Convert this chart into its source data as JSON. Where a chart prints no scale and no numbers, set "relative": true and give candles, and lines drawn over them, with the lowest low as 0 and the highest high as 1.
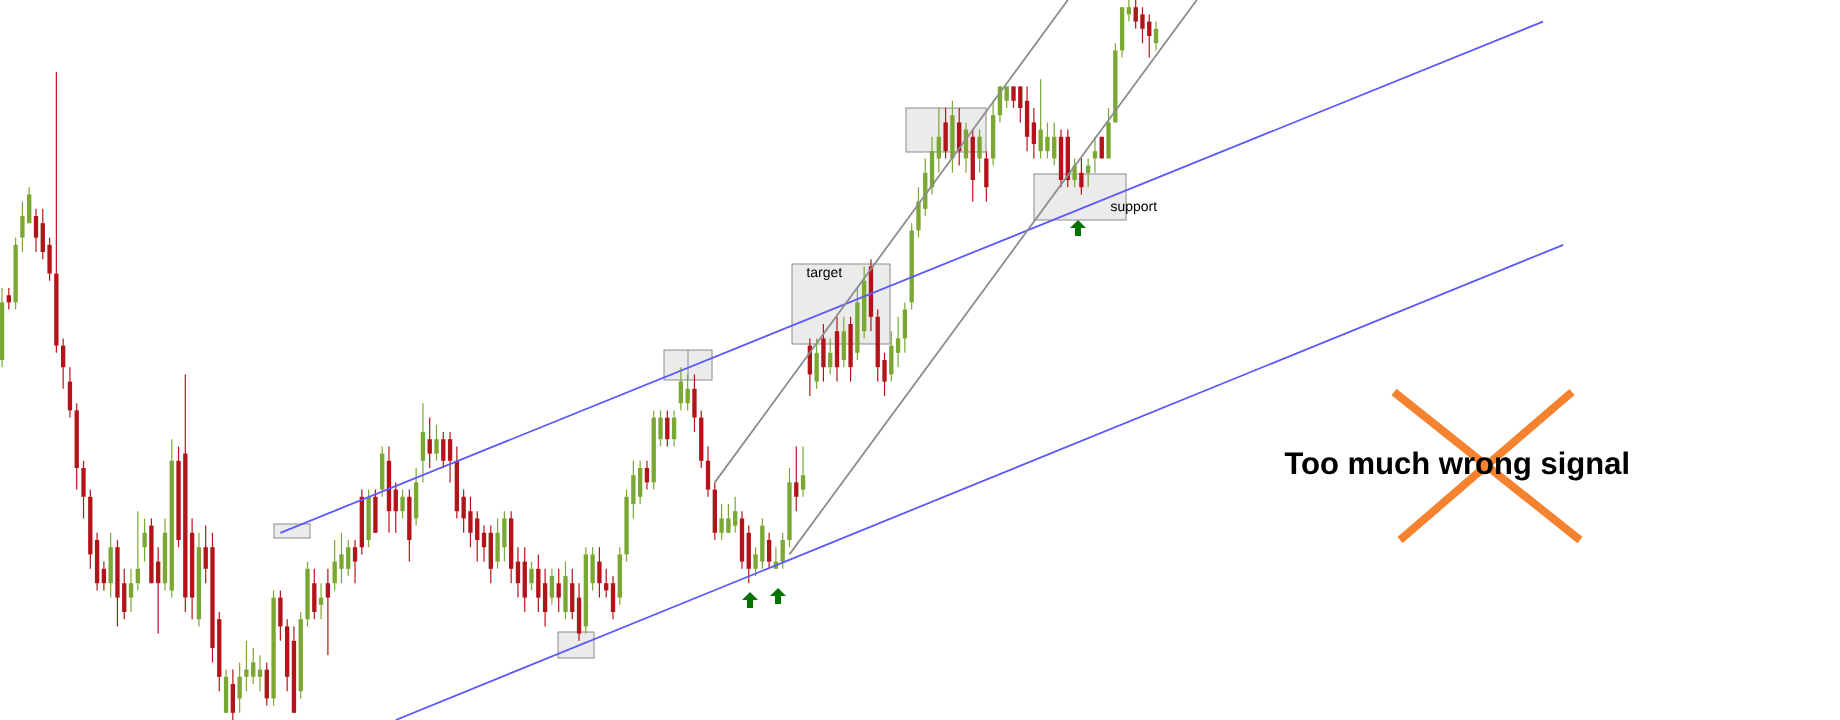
{
  "chart_data": {
    "type": "candlestick",
    "relative": true,
    "categories": [
      null,
      null,
      null,
      null,
      null,
      null,
      null,
      null,
      null,
      null,
      null,
      null,
      null,
      null,
      null,
      null,
      null,
      null,
      null,
      null,
      null,
      null,
      null,
      null,
      null,
      null,
      null,
      null,
      null,
      null,
      null,
      null,
      null,
      null,
      null,
      null,
      null,
      null,
      null,
      null,
      null,
      null,
      null,
      null,
      null,
      null,
      null,
      null,
      null,
      null,
      null,
      null,
      null,
      null,
      null,
      null,
      null,
      null,
      null,
      null,
      null,
      null,
      null,
      null,
      null,
      null,
      null,
      null,
      null,
      null,
      null,
      null,
      null,
      null,
      null,
      null,
      null,
      null,
      null,
      null,
      null,
      null,
      null,
      null,
      null,
      null,
      null,
      null,
      null,
      null,
      null,
      null,
      null,
      null,
      null,
      null,
      null,
      null,
      null,
      null,
      null,
      null,
      null,
      null,
      null,
      null,
      null,
      null,
      null,
      null,
      null,
      null,
      null,
      null,
      null,
      null,
      null,
      null,
      null,
      null,
      null,
      null,
      null,
      null,
      null,
      null,
      null,
      null,
      null,
      null,
      null,
      null,
      null,
      null,
      null,
      null,
      null,
      null,
      null,
      null,
      null,
      null,
      null,
      null,
      null,
      null,
      null,
      null,
      null,
      null,
      null,
      null,
      null,
      null,
      null,
      null,
      null,
      null,
      null,
      null,
      null,
      null,
      null,
      null,
      null,
      null,
      null,
      null,
      null,
      null,
      null,
      null,
      null,
      null,
      null,
      null,
      null,
      null,
      null,
      null,
      null,
      null,
      null,
      null,
      null,
      null,
      null,
      null,
      null,
      null,
      null,
      null,
      null,
      null,
      null,
      null,
      null,
      null,
      null,
      null,
      null,
      null,
      null,
      null,
      null,
      null,
      null,
      null,
      null,
      null,
      null,
      null,
      null,
      null,
      null,
      null,
      null,
      null,
      null,
      null,
      null,
      null,
      null,
      null,
      null,
      null,
      null,
      null,
      null,
      null,
      null,
      null,
      null,
      null,
      null,
      null,
      null,
      null,
      null,
      null,
      null,
      null,
      null,
      null,
      null,
      null,
      null,
      null,
      null,
      null,
      null,
      null,
      null,
      null,
      null,
      null,
      null,
      null,
      null,
      null,
      null,
      null,
      null,
      null,
      null,
      null,
      null,
      null,
      null,
      null,
      null,
      null
    ],
    "ohlc": [
      [
        0.5,
        0.6,
        0.49,
        0.58
      ],
      [
        0.59,
        0.6,
        0.57,
        0.58
      ],
      [
        0.58,
        0.67,
        0.57,
        0.66
      ],
      [
        0.67,
        0.72,
        0.65,
        0.7
      ],
      [
        0.69,
        0.74,
        0.69,
        0.73
      ],
      [
        0.7,
        0.71,
        0.65,
        0.67
      ],
      [
        0.69,
        0.71,
        0.64,
        0.65
      ],
      [
        0.66,
        0.67,
        0.61,
        0.62
      ],
      [
        0.62,
        0.9,
        0.51,
        0.52
      ],
      [
        0.52,
        0.53,
        0.46,
        0.49
      ],
      [
        0.47,
        0.49,
        0.42,
        0.43
      ],
      [
        0.43,
        0.44,
        0.32,
        0.35
      ],
      [
        0.35,
        0.36,
        0.28,
        0.31
      ],
      [
        0.31,
        0.32,
        0.21,
        0.23
      ],
      [
        0.25,
        0.26,
        0.18,
        0.19
      ],
      [
        0.21,
        0.22,
        0.18,
        0.19
      ],
      [
        0.19,
        0.26,
        0.17,
        0.24
      ],
      [
        0.24,
        0.25,
        0.13,
        0.17
      ],
      [
        0.19,
        0.21,
        0.14,
        0.15
      ],
      [
        0.17,
        0.21,
        0.15,
        0.19
      ],
      [
        0.19,
        0.29,
        0.18,
        0.21
      ],
      [
        0.24,
        0.28,
        0.22,
        0.26
      ],
      [
        0.27,
        0.28,
        0.19,
        0.19
      ],
      [
        0.22,
        0.24,
        0.12,
        0.19
      ],
      [
        0.19,
        0.28,
        0.18,
        0.26
      ],
      [
        0.18,
        0.39,
        0.17,
        0.36
      ],
      [
        0.36,
        0.38,
        0.24,
        0.25
      ],
      [
        0.37,
        0.48,
        0.15,
        0.17
      ],
      [
        0.26,
        0.28,
        0.14,
        0.17
      ],
      [
        0.14,
        0.26,
        0.13,
        0.24
      ],
      [
        0.24,
        0.27,
        0.19,
        0.21
      ],
      [
        0.24,
        0.26,
        0.08,
        0.1
      ],
      [
        0.14,
        0.15,
        0.04,
        0.06
      ],
      [
        0.01,
        0.07,
        0.01,
        0.06
      ],
      [
        0.05,
        0.07,
        0.0,
        0.01
      ],
      [
        0.03,
        0.08,
        0.01,
        0.06
      ],
      [
        0.06,
        0.11,
        0.04,
        0.07
      ],
      [
        0.06,
        0.1,
        0.05,
        0.08
      ],
      [
        0.06,
        0.09,
        0.04,
        0.07
      ],
      [
        0.07,
        0.08,
        0.02,
        0.03
      ],
      [
        0.03,
        0.18,
        0.02,
        0.17
      ],
      [
        0.17,
        0.18,
        0.11,
        0.13
      ],
      [
        0.13,
        0.14,
        0.04,
        0.06
      ],
      [
        0.11,
        0.13,
        0.01,
        0.01
      ],
      [
        0.04,
        0.15,
        0.03,
        0.14
      ],
      [
        0.14,
        0.22,
        0.13,
        0.21
      ],
      [
        0.19,
        0.21,
        0.14,
        0.15
      ],
      [
        0.16,
        0.19,
        0.14,
        0.17
      ],
      [
        0.19,
        0.21,
        0.09,
        0.17
      ],
      [
        0.19,
        0.25,
        0.18,
        0.22
      ],
      [
        0.21,
        0.26,
        0.19,
        0.23
      ],
      [
        0.21,
        0.25,
        0.2,
        0.24
      ],
      [
        0.24,
        0.25,
        0.19,
        0.22
      ],
      [
        0.31,
        0.32,
        0.23,
        0.24
      ],
      [
        0.25,
        0.32,
        0.24,
        0.31
      ],
      [
        0.31,
        0.32,
        0.26,
        0.26
      ],
      [
        0.32,
        0.38,
        0.31,
        0.37
      ],
      [
        0.36,
        0.38,
        0.26,
        0.29
      ],
      [
        0.32,
        0.33,
        0.26,
        0.29
      ],
      [
        0.29,
        0.32,
        0.28,
        0.31
      ],
      [
        0.31,
        0.32,
        0.22,
        0.25
      ],
      [
        0.28,
        0.35,
        0.27,
        0.33
      ],
      [
        0.36,
        0.44,
        0.33,
        0.4
      ],
      [
        0.39,
        0.42,
        0.35,
        0.37
      ],
      [
        0.37,
        0.41,
        0.36,
        0.39
      ],
      [
        0.39,
        0.4,
        0.35,
        0.36
      ],
      [
        0.39,
        0.4,
        0.33,
        0.36
      ],
      [
        0.36,
        0.38,
        0.28,
        0.29
      ],
      [
        0.31,
        0.32,
        0.26,
        0.28
      ],
      [
        0.29,
        0.31,
        0.24,
        0.26
      ],
      [
        0.28,
        0.29,
        0.22,
        0.25
      ],
      [
        0.26,
        0.27,
        0.22,
        0.24
      ],
      [
        0.26,
        0.27,
        0.19,
        0.21
      ],
      [
        0.22,
        0.28,
        0.21,
        0.26
      ],
      [
        0.24,
        0.29,
        0.22,
        0.28
      ],
      [
        0.28,
        0.29,
        0.19,
        0.21
      ],
      [
        0.22,
        0.24,
        0.17,
        0.19
      ],
      [
        0.22,
        0.24,
        0.15,
        0.17
      ],
      [
        0.19,
        0.22,
        0.18,
        0.21
      ],
      [
        0.21,
        0.23,
        0.15,
        0.17
      ],
      [
        0.19,
        0.21,
        0.13,
        0.15
      ],
      [
        0.17,
        0.21,
        0.16,
        0.2
      ],
      [
        0.19,
        0.21,
        0.15,
        0.17
      ],
      [
        0.15,
        0.22,
        0.14,
        0.2
      ],
      [
        0.19,
        0.21,
        0.14,
        0.15
      ],
      [
        0.17,
        0.19,
        0.11,
        0.12
      ],
      [
        0.13,
        0.24,
        0.12,
        0.23
      ],
      [
        0.19,
        0.24,
        0.18,
        0.23
      ],
      [
        0.22,
        0.24,
        0.17,
        0.19
      ],
      [
        0.19,
        0.21,
        0.17,
        0.18
      ],
      [
        0.19,
        0.2,
        0.14,
        0.15
      ],
      [
        0.17,
        0.24,
        0.16,
        0.23
      ],
      [
        0.23,
        0.32,
        0.22,
        0.31
      ],
      [
        0.3,
        0.36,
        0.28,
        0.34
      ],
      [
        0.31,
        0.36,
        0.3,
        0.35
      ],
      [
        0.35,
        0.36,
        0.32,
        0.33
      ],
      [
        0.33,
        0.43,
        0.32,
        0.42
      ],
      [
        0.39,
        0.43,
        0.38,
        0.42
      ],
      [
        0.42,
        0.43,
        0.38,
        0.39
      ],
      [
        0.39,
        0.43,
        0.38,
        0.42
      ],
      [
        0.44,
        0.49,
        0.43,
        0.47
      ],
      [
        0.44,
        0.48,
        0.43,
        0.46
      ],
      [
        0.46,
        0.48,
        0.4,
        0.42
      ],
      [
        0.42,
        0.43,
        0.35,
        0.36
      ],
      [
        0.36,
        0.38,
        0.31,
        0.32
      ],
      [
        0.32,
        0.33,
        0.25,
        0.26
      ],
      [
        0.26,
        0.3,
        0.25,
        0.28
      ],
      [
        0.26,
        0.3,
        0.26,
        0.28
      ],
      [
        0.27,
        0.31,
        0.26,
        0.29
      ],
      [
        0.28,
        0.29,
        0.21,
        0.22
      ],
      [
        0.26,
        0.27,
        0.19,
        0.21
      ],
      [
        0.21,
        0.24,
        0.2,
        0.23
      ],
      [
        0.22,
        0.28,
        0.21,
        0.27
      ],
      [
        0.25,
        0.26,
        0.21,
        0.22
      ],
      [
        0.21,
        0.24,
        0.21,
        0.22
      ],
      [
        0.22,
        0.26,
        0.21,
        0.25
      ],
      [
        0.25,
        0.35,
        0.24,
        0.33
      ],
      [
        0.33,
        0.38,
        0.29,
        0.31
      ],
      [
        0.32,
        0.38,
        0.31,
        0.34
      ],
      [
        0.52,
        0.53,
        0.45,
        0.48
      ],
      [
        0.47,
        0.53,
        0.46,
        0.51
      ],
      [
        0.53,
        0.55,
        0.47,
        0.49
      ],
      [
        0.49,
        0.53,
        0.48,
        0.51
      ],
      [
        0.54,
        0.56,
        0.47,
        0.49
      ],
      [
        0.5,
        0.56,
        0.49,
        0.54
      ],
      [
        0.55,
        0.56,
        0.47,
        0.49
      ],
      [
        0.51,
        0.6,
        0.5,
        0.58
      ],
      [
        0.54,
        0.63,
        0.53,
        0.61
      ],
      [
        0.63,
        0.64,
        0.54,
        0.56
      ],
      [
        0.56,
        0.57,
        0.47,
        0.49
      ],
      [
        0.5,
        0.51,
        0.45,
        0.47
      ],
      [
        0.48,
        0.54,
        0.47,
        0.52
      ],
      [
        0.51,
        0.56,
        0.49,
        0.53
      ],
      [
        0.53,
        0.58,
        0.51,
        0.57
      ],
      [
        0.58,
        0.69,
        0.57,
        0.68
      ],
      [
        0.68,
        0.74,
        0.67,
        0.72
      ],
      [
        0.71,
        0.78,
        0.7,
        0.76
      ],
      [
        0.74,
        0.81,
        0.73,
        0.79
      ],
      [
        0.78,
        0.85,
        0.76,
        0.81
      ],
      [
        0.83,
        0.85,
        0.78,
        0.79
      ],
      [
        0.78,
        0.86,
        0.76,
        0.84
      ],
      [
        0.83,
        0.85,
        0.77,
        0.79
      ],
      [
        0.78,
        0.83,
        0.76,
        0.82
      ],
      [
        0.81,
        0.82,
        0.72,
        0.75
      ],
      [
        0.78,
        0.82,
        0.76,
        0.81
      ],
      [
        0.78,
        0.79,
        0.72,
        0.74
      ],
      [
        0.78,
        0.86,
        0.77,
        0.84
      ],
      [
        0.84,
        0.88,
        0.83,
        0.88
      ],
      [
        0.86,
        0.88,
        0.85,
        0.88
      ],
      [
        0.88,
        0.88,
        0.85,
        0.86
      ],
      [
        0.88,
        0.88,
        0.83,
        0.85
      ],
      [
        0.86,
        0.88,
        0.79,
        0.81
      ],
      [
        0.83,
        0.85,
        0.78,
        0.8
      ],
      [
        0.79,
        0.89,
        0.78,
        0.82
      ],
      [
        0.79,
        0.83,
        0.78,
        0.81
      ],
      [
        0.78,
        0.83,
        0.77,
        0.81
      ],
      [
        0.81,
        0.82,
        0.74,
        0.75
      ],
      [
        0.81,
        0.82,
        0.74,
        0.75
      ],
      [
        0.75,
        0.78,
        0.74,
        0.77
      ],
      [
        0.76,
        0.78,
        0.73,
        0.74
      ],
      [
        0.76,
        0.78,
        0.74,
        0.77
      ],
      [
        0.78,
        0.81,
        0.76,
        0.79
      ],
      [
        0.81,
        0.81,
        0.78,
        0.78
      ],
      [
        0.78,
        0.85,
        0.78,
        0.83
      ],
      [
        0.83,
        0.94,
        0.83,
        0.93
      ],
      [
        0.93,
        0.99,
        0.92,
        0.99
      ],
      [
        0.98,
        1.0,
        0.97,
        0.99
      ],
      [
        0.99,
        1.0,
        0.96,
        0.97
      ],
      [
        0.98,
        0.99,
        0.94,
        0.96
      ],
      [
        0.97,
        0.98,
        0.92,
        0.95
      ],
      [
        0.94,
        0.97,
        0.93,
        0.96
      ],
      null,
      null,
      null,
      null,
      null,
      null,
      null,
      null,
      null,
      null,
      null,
      null,
      null,
      null,
      null,
      null,
      null,
      null,
      null,
      null,
      null,
      null,
      null,
      null,
      null,
      null,
      null,
      null,
      null,
      null,
      null,
      null,
      null,
      null,
      null,
      null,
      null,
      null,
      null,
      null,
      null,
      null,
      null,
      null,
      null,
      null,
      null,
      null,
      null,
      null,
      null,
      null,
      null,
      null,
      null,
      null,
      null,
      null,
      null,
      null,
      null,
      null,
      null,
      null,
      null,
      null,
      null,
      null,
      null,
      null,
      null,
      null,
      null,
      null,
      null,
      null,
      null,
      null,
      null,
      null,
      null,
      null,
      null,
      null,
      null,
      null,
      null,
      null,
      null,
      null,
      null,
      null,
      null,
      null,
      null,
      null,
      null,
      null,
      null,
      null,
      null
    ],
    "colors": [
      "#7aa832",
      "#b3141a",
      "#7aa832",
      "#7aa832",
      "#7aa832",
      "#b3141a",
      "#b3141a",
      "#b3141a",
      "#b3141a",
      "#b3141a",
      "#b3141a",
      "#b3141a",
      "#b3141a",
      "#b3141a",
      "#b3141a",
      "#b3141a",
      "#7aa832",
      "#b3141a",
      "#b3141a",
      "#7aa832",
      "#7aa832",
      "#7aa832",
      "#b3141a",
      "#b3141a",
      "#7aa832",
      "#7aa832",
      "#b3141a",
      "#b3141a",
      "#b3141a",
      "#7aa832",
      "#b3141a",
      "#b3141a",
      "#b3141a",
      "#7aa832",
      "#b3141a",
      "#7aa832",
      "#7aa832",
      "#7aa832",
      "#7aa832",
      "#b3141a",
      "#7aa832",
      "#b3141a",
      "#b3141a",
      "#b3141a",
      "#7aa832",
      "#7aa832",
      "#b3141a",
      "#7aa832",
      "#b3141a",
      "#7aa832",
      "#7aa832",
      "#7aa832",
      "#b3141a",
      "#b3141a",
      "#7aa832",
      "#b3141a",
      "#7aa832",
      "#b3141a",
      "#b3141a",
      "#7aa832",
      "#b3141a",
      "#7aa832",
      "#7aa832",
      "#b3141a",
      "#7aa832",
      "#b3141a",
      "#b3141a",
      "#b3141a",
      "#b3141a",
      "#b3141a",
      "#b3141a",
      "#b3141a",
      "#b3141a",
      "#7aa832",
      "#7aa832",
      "#b3141a",
      "#b3141a",
      "#b3141a",
      "#7aa832",
      "#b3141a",
      "#b3141a",
      "#7aa832",
      "#b3141a",
      "#7aa832",
      "#b3141a",
      "#b3141a",
      "#7aa832",
      "#7aa832",
      "#b3141a",
      "#b3141a",
      "#b3141a",
      "#7aa832",
      "#7aa832",
      "#7aa832",
      "#7aa832",
      "#b3141a",
      "#7aa832",
      "#7aa832",
      "#b3141a",
      "#7aa832",
      "#7aa832",
      "#7aa832",
      "#b3141a",
      "#b3141a",
      "#b3141a",
      "#b3141a",
      "#7aa832",
      "#7aa832",
      "#7aa832",
      "#b3141a",
      "#b3141a",
      "#7aa832",
      "#7aa832",
      "#b3141a",
      "#7aa832",
      "#7aa832",
      "#7aa832",
      "#b3141a",
      "#7aa832",
      "#b3141a",
      "#7aa832",
      "#b3141a",
      "#7aa832",
      "#b3141a",
      "#7aa832",
      "#b3141a",
      "#7aa832",
      "#7aa832",
      "#b3141a",
      "#b3141a",
      "#b3141a",
      "#7aa832",
      "#7aa832",
      "#7aa832",
      "#7aa832",
      "#7aa832",
      "#7aa832",
      "#7aa832",
      "#7aa832",
      "#b3141a",
      "#7aa832",
      "#b3141a",
      "#7aa832",
      "#b3141a",
      "#7aa832",
      "#b3141a",
      "#7aa832",
      "#7aa832",
      "#7aa832",
      "#b3141a",
      "#b3141a",
      "#b3141a",
      "#b3141a",
      "#7aa832",
      "#7aa832",
      "#7aa832",
      "#b3141a",
      "#b3141a",
      "#7aa832",
      "#b3141a",
      "#7aa832",
      "#7aa832",
      "#b3141a",
      "#7aa832",
      "#7aa832",
      "#7aa832",
      "#7aa832",
      "#b3141a",
      "#b3141a",
      "#b3141a",
      "#7aa832",
      null,
      null,
      null,
      null,
      null,
      null,
      null,
      null,
      null,
      null,
      null,
      null,
      null,
      null,
      null,
      null,
      null,
      null,
      null,
      null,
      null,
      null,
      null,
      null,
      null,
      null,
      null,
      null,
      null,
      null,
      null,
      null,
      null,
      null,
      null,
      null,
      null,
      null,
      null,
      null,
      null,
      null,
      null,
      null,
      null,
      null,
      null,
      null,
      null,
      null,
      null,
      null,
      null,
      null,
      null,
      null,
      null,
      null,
      null,
      null,
      null,
      null,
      null,
      null,
      null,
      null,
      null,
      null,
      null,
      null,
      null,
      null,
      null,
      null,
      null,
      null,
      null,
      null,
      null,
      null,
      null,
      null,
      null,
      null,
      null,
      null,
      null,
      null,
      null,
      null,
      null,
      null,
      null,
      null,
      null,
      null,
      null,
      null,
      null,
      null,
      null
    ],
    "series": [
      {
        "type": "line",
        "color": "#5a5aff",
        "values": [
          null,
          null,
          null,
          null,
          null,
          null,
          null,
          null,
          null,
          null,
          null,
          null,
          null,
          null,
          null,
          null,
          null,
          null,
          null,
          null,
          null,
          null,
          null,
          null,
          null,
          null,
          null,
          null,
          null,
          null,
          null,
          null,
          null,
          null,
          null,
          null,
          null,
          null,
          null,
          null,
          null,
          0.26,
          null,
          null,
          null,
          null,
          null,
          null,
          null,
          null,
          null,
          null,
          null,
          null,
          null,
          null,
          null,
          null,
          null,
          null,
          null,
          null,
          null,
          null,
          null,
          null,
          null,
          null,
          null,
          null,
          null,
          null,
          null,
          null,
          null,
          null,
          null,
          null,
          null,
          null,
          null,
          null,
          null,
          null,
          null,
          null,
          null,
          null,
          null,
          null,
          null,
          null,
          null,
          null,
          null,
          null,
          null,
          null,
          null,
          null,
          null,
          null,
          null,
          null,
          null,
          null,
          null,
          null,
          null,
          null,
          null,
          null,
          null,
          null,
          null,
          null,
          null,
          null,
          null,
          null,
          null,
          null,
          null,
          null,
          null,
          null,
          null,
          null,
          null,
          null,
          null,
          null,
          null,
          null,
          null,
          null,
          null,
          null,
          null,
          null,
          null,
          null,
          null,
          null,
          null,
          null,
          null,
          null,
          null,
          null,
          null,
          null,
          null,
          null,
          null,
          null,
          null,
          null,
          null,
          null,
          null,
          null,
          null,
          null,
          null,
          null,
          null,
          null,
          null,
          null,
          null,
          null,
          null,
          null,
          null,
          null,
          null,
          null,
          null,
          null,
          null,
          null,
          null,
          null,
          null,
          null,
          null,
          null,
          null,
          null,
          null,
          null,
          null,
          null,
          null,
          null,
          null,
          null,
          null,
          null,
          null,
          null,
          null,
          null,
          null,
          null,
          null,
          null,
          null,
          null,
          null,
          null,
          null,
          null,
          null,
          null,
          null,
          null,
          null,
          null,
          null,
          null,
          null,
          null,
          null,
          null,
          null,
          0.97,
          null,
          null,
          null,
          null,
          null,
          null,
          null,
          null,
          null,
          null,
          null,
          null,
          null,
          null,
          null,
          null,
          null,
          null,
          null,
          null,
          null,
          null,
          null,
          null,
          null,
          null,
          null,
          null,
          null,
          null,
          null,
          null,
          null,
          null,
          null,
          null,
          null,
          null,
          null,
          null,
          null,
          null,
          null,
          null
        ]
      },
      {
        "type": "line",
        "color": "#5a5aff",
        "values": [
          null,
          null,
          null,
          null,
          null,
          null,
          null,
          null,
          null,
          null,
          null,
          null,
          null,
          null,
          null,
          null,
          null,
          null,
          null,
          null,
          null,
          null,
          null,
          null,
          null,
          null,
          null,
          null,
          null,
          null,
          null,
          null,
          null,
          null,
          null,
          null,
          null,
          null,
          null,
          null,
          null,
          null,
          null,
          null,
          null,
          null,
          null,
          null,
          null,
          null,
          null,
          null,
          null,
          null,
          null,
          null,
          null,
          null,
          0.0,
          null,
          null,
          null,
          null,
          null,
          null,
          null,
          null,
          null,
          null,
          null,
          null,
          null,
          null,
          null,
          null,
          null,
          null,
          null,
          null,
          null,
          null,
          null,
          null,
          null,
          null,
          null,
          null,
          null,
          null,
          null,
          null,
          null,
          null,
          null,
          null,
          null,
          null,
          null,
          null,
          null,
          null,
          null,
          null,
          null,
          null,
          null,
          null,
          null,
          null,
          null,
          null,
          null,
          null,
          null,
          null,
          null,
          null,
          null,
          null,
          null,
          null,
          null,
          null,
          null,
          null,
          null,
          null,
          null,
          null,
          null,
          null,
          null,
          null,
          null,
          null,
          null,
          null,
          null,
          null,
          null,
          null,
          null,
          null,
          null,
          null,
          null,
          null,
          null,
          null,
          null,
          null,
          null,
          null,
          null,
          null,
          null,
          null,
          null,
          null,
          null,
          null,
          null,
          null,
          null,
          null,
          null,
          null,
          null,
          null,
          null,
          null,
          null,
          null,
          null,
          null,
          null,
          null,
          null,
          null,
          null,
          null,
          null,
          null,
          null,
          null,
          null,
          null,
          null,
          null,
          null,
          null,
          null,
          null,
          null,
          null,
          null,
          null,
          null,
          null,
          null,
          null,
          null,
          null,
          null,
          null,
          null,
          null,
          null,
          null,
          null,
          null,
          null,
          null,
          null,
          null,
          null,
          null,
          null,
          null,
          null,
          null,
          null,
          null,
          null,
          null,
          null,
          null,
          null,
          null,
          null,
          0.66,
          null,
          null,
          null,
          null,
          null,
          null,
          null,
          null,
          null,
          null,
          null,
          null,
          null,
          null,
          null,
          null,
          null,
          null,
          null,
          null,
          null,
          null,
          null,
          null,
          null,
          null,
          null,
          null,
          null,
          null,
          null,
          null,
          null,
          null,
          null,
          null,
          null,
          null,
          null,
          null,
          null
        ]
      },
      {
        "type": "line",
        "color": "#8c8c8c",
        "values": [
          null,
          null,
          null,
          null,
          null,
          null,
          null,
          null,
          null,
          null,
          null,
          null,
          null,
          null,
          null,
          null,
          null,
          null,
          null,
          null,
          null,
          null,
          null,
          null,
          null,
          null,
          null,
          null,
          null,
          null,
          null,
          null,
          null,
          null,
          null,
          null,
          null,
          null,
          null,
          null,
          null,
          null,
          null,
          null,
          null,
          null,
          null,
          null,
          null,
          null,
          null,
          null,
          null,
          null,
          null,
          null,
          null,
          null,
          null,
          null,
          null,
          null,
          null,
          null,
          null,
          null,
          null,
          null,
          null,
          null,
          null,
          null,
          null,
          null,
          null,
          null,
          null,
          null,
          null,
          null,
          null,
          null,
          null,
          null,
          null,
          null,
          null,
          null,
          null,
          null,
          null,
          null,
          null,
          null,
          null,
          null,
          null,
          null,
          null,
          null,
          null,
          null,
          null,
          null,
          null,
          0.33,
          null,
          null,
          null,
          null,
          null,
          null,
          null,
          null,
          null,
          null,
          null,
          null,
          null,
          null,
          null,
          null,
          null,
          null,
          null,
          null,
          null,
          null,
          null,
          null,
          null,
          null,
          null,
          null,
          null,
          null,
          null,
          null,
          null,
          null,
          null,
          null,
          null,
          null,
          null,
          null,
          null,
          null,
          null,
          null,
          null,
          null,
          null,
          null,
          null,
          null,
          null,
          1.0,
          null,
          null,
          null,
          null,
          null,
          null,
          null,
          null,
          null,
          null,
          null,
          null,
          null,
          null,
          null,
          null,
          null,
          null,
          null,
          null,
          null,
          null,
          null,
          null,
          null,
          null,
          null,
          null,
          null,
          null,
          null,
          null,
          null,
          null,
          null,
          null,
          null,
          null,
          null,
          null,
          null,
          null,
          null,
          null,
          null,
          null,
          null,
          null,
          null,
          null,
          null,
          null,
          null,
          null,
          null,
          null,
          null,
          null,
          null,
          null,
          null,
          null,
          null,
          null,
          null,
          null,
          null,
          null,
          null,
          null,
          null,
          null,
          null,
          null,
          null,
          null,
          null,
          null,
          null,
          null,
          null,
          null,
          null,
          null,
          null,
          null,
          null,
          null,
          null,
          null,
          null,
          null,
          null,
          null,
          null,
          null,
          null,
          null,
          null,
          null,
          null,
          null,
          null,
          null,
          null,
          null,
          null,
          null,
          null,
          null,
          null,
          null,
          null,
          null
        ]
      },
      {
        "type": "line",
        "color": "#8c8c8c",
        "values": [
          null,
          null,
          null,
          null,
          null,
          null,
          null,
          null,
          null,
          null,
          null,
          null,
          null,
          null,
          null,
          null,
          null,
          null,
          null,
          null,
          null,
          null,
          null,
          null,
          null,
          null,
          null,
          null,
          null,
          null,
          null,
          null,
          null,
          null,
          null,
          null,
          null,
          null,
          null,
          null,
          null,
          null,
          null,
          null,
          null,
          null,
          null,
          null,
          null,
          null,
          null,
          null,
          null,
          null,
          null,
          null,
          null,
          null,
          null,
          null,
          null,
          null,
          null,
          null,
          null,
          null,
          null,
          null,
          null,
          null,
          null,
          null,
          null,
          null,
          null,
          null,
          null,
          null,
          null,
          null,
          null,
          null,
          null,
          null,
          null,
          null,
          null,
          null,
          null,
          null,
          null,
          null,
          null,
          null,
          null,
          null,
          null,
          null,
          null,
          null,
          null,
          null,
          null,
          null,
          null,
          null,
          null,
          null,
          null,
          null,
          null,
          null,
          null,
          null,
          null,
          null,
          0.23,
          null,
          null,
          null,
          null,
          null,
          null,
          null,
          null,
          null,
          null,
          null,
          null,
          null,
          null,
          null,
          null,
          null,
          null,
          null,
          null,
          null,
          null,
          null,
          null,
          null,
          null,
          null,
          null,
          null,
          null,
          null,
          null,
          null,
          null,
          null,
          null,
          null,
          null,
          null,
          null,
          null,
          null,
          null,
          null,
          null,
          null,
          null,
          null,
          null,
          null,
          null,
          null,
          null,
          null,
          null,
          null,
          null,
          null,
          null,
          1.0,
          null,
          null,
          null,
          null,
          null,
          null,
          null,
          null,
          null,
          null,
          null,
          null,
          null,
          null,
          null,
          null,
          null,
          null,
          null,
          null,
          null,
          null,
          null,
          null,
          null,
          null,
          null,
          null,
          null,
          null,
          null,
          null,
          null,
          null,
          null,
          null,
          null,
          null,
          null,
          null,
          null,
          null,
          null,
          null,
          null,
          null,
          null,
          null,
          null,
          null,
          null,
          null,
          null,
          null,
          null,
          null,
          null,
          null,
          null,
          null,
          null,
          null,
          null,
          null,
          null,
          null,
          null,
          null,
          null,
          null,
          null,
          null,
          null,
          null,
          null,
          null,
          null,
          null,
          null,
          null,
          null,
          null,
          null,
          null,
          null,
          null,
          null,
          null,
          null,
          null,
          null,
          null,
          null,
          null,
          null
        ]
      }
    ],
    "annotations": [
      "target",
      "support",
      "Too much wrong signal"
    ]
  }
}
